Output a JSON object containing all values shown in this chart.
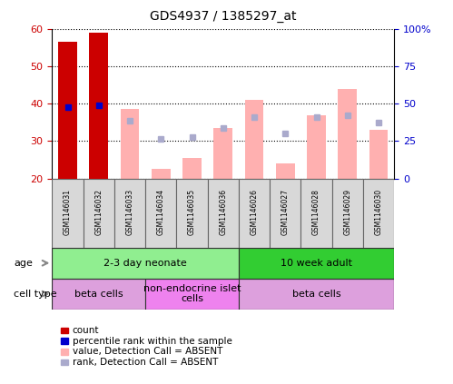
{
  "title": "GDS4937 / 1385297_at",
  "samples": [
    "GSM1146031",
    "GSM1146032",
    "GSM1146033",
    "GSM1146034",
    "GSM1146035",
    "GSM1146036",
    "GSM1146026",
    "GSM1146027",
    "GSM1146028",
    "GSM1146029",
    "GSM1146030"
  ],
  "red_bars": [
    56.5,
    59.0,
    null,
    null,
    null,
    null,
    null,
    null,
    null,
    null,
    null
  ],
  "blue_dots": [
    39.0,
    39.5,
    null,
    null,
    null,
    null,
    null,
    null,
    null,
    null,
    null
  ],
  "pink_bars": [
    null,
    null,
    38.5,
    22.5,
    25.5,
    33.5,
    41.0,
    24.0,
    37.0,
    44.0,
    33.0
  ],
  "rank_dots": [
    null,
    null,
    35.5,
    30.5,
    31.0,
    33.5,
    36.5,
    32.0,
    36.5,
    37.0,
    35.0
  ],
  "ylim_left": [
    20,
    60
  ],
  "yticks_left": [
    20,
    30,
    40,
    50,
    60
  ],
  "yticks_right_labels": [
    "0",
    "25",
    "50",
    "75",
    "100%"
  ],
  "yticks_right_vals": [
    20,
    30,
    40,
    50,
    60
  ],
  "age_groups": [
    {
      "label": "2-3 day neonate",
      "start": 0,
      "end": 5,
      "color": "#90ee90"
    },
    {
      "label": "10 week adult",
      "start": 6,
      "end": 10,
      "color": "#32cd32"
    }
  ],
  "cell_groups": [
    {
      "label": "beta cells",
      "start": 0,
      "end": 2,
      "color": "#dda0dd"
    },
    {
      "label": "non-endocrine islet\ncells",
      "start": 3,
      "end": 5,
      "color": "#ee82ee"
    },
    {
      "label": "beta cells",
      "start": 6,
      "end": 10,
      "color": "#dda0dd"
    }
  ],
  "legend_items": [
    {
      "color": "#cc0000",
      "label": "count"
    },
    {
      "color": "#0000cc",
      "label": "percentile rank within the sample"
    },
    {
      "color": "#ffb0b0",
      "label": "value, Detection Call = ABSENT"
    },
    {
      "color": "#aaaacc",
      "label": "rank, Detection Call = ABSENT"
    }
  ],
  "bar_width": 0.6,
  "ybase": 20
}
